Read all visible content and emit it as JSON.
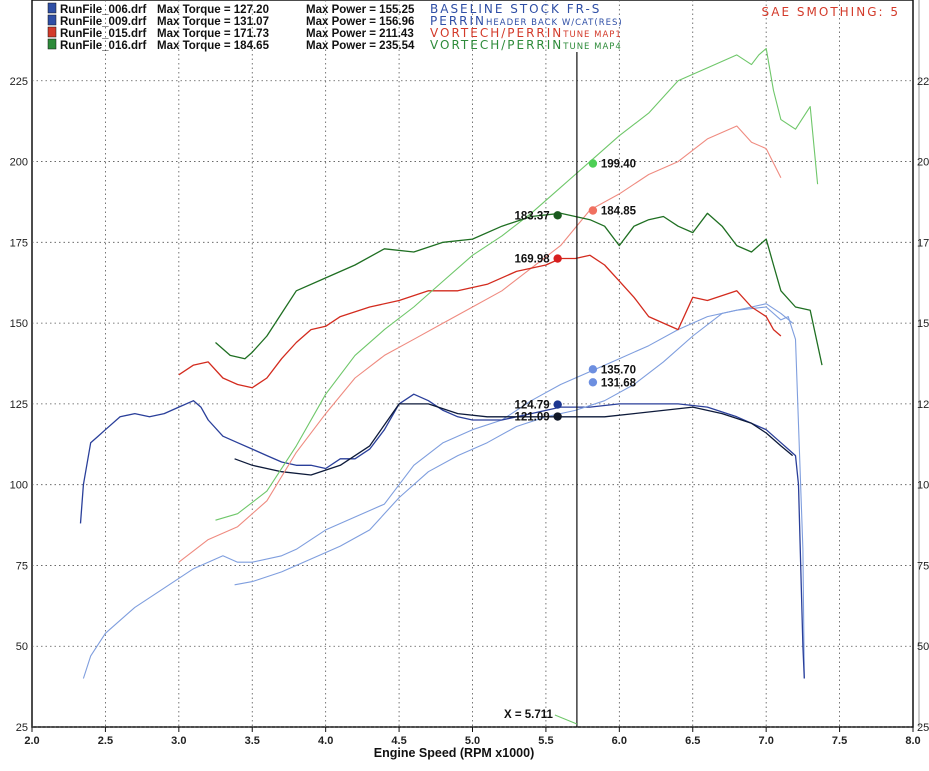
{
  "smoothing_label": "SAE SMOTHING: 5",
  "legend": [
    {
      "file": "RunFile_006.drf",
      "torque_label": "Max Torque = 127.20",
      "power_label": "Max Power = 155.25",
      "tune_main": "BASELINE STOCK FR-S",
      "tune_small": "",
      "color": "#2f4fa6"
    },
    {
      "file": "RunFile_009.drf",
      "torque_label": "Max Torque = 131.07",
      "power_label": "Max Power = 156.96",
      "tune_main": "PERRIN",
      "tune_small": "HEADER BACK W/CAT(RES)",
      "color": "#2f4fa6"
    },
    {
      "file": "RunFile_015.drf",
      "torque_label": "Max Torque = 171.73",
      "power_label": "Max Power = 211.43",
      "tune_main": "VORTECH/PERRIN",
      "tune_small": "TUNE MAP1",
      "color": "#d33a2a"
    },
    {
      "file": "RunFile_016.drf",
      "torque_label": "Max Torque = 184.65",
      "power_label": "Max Power = 235.54",
      "tune_main": "VORTECH/PERRIN",
      "tune_small": "TUNE MAP4",
      "color": "#2e8b3a"
    }
  ],
  "cursor_label": "X = 5.711",
  "chart_data": {
    "type": "line",
    "xlabel": "Engine Speed (RPM x1000)",
    "ylabel": "",
    "xlim": [
      2.0,
      8.0
    ],
    "ylim": [
      25,
      250
    ],
    "x_ticks": [
      "2.0",
      "2.5",
      "3.0",
      "3.5",
      "4.0",
      "4.5",
      "5.0",
      "5.5",
      "6.0",
      "6.5",
      "7.0",
      "7.5",
      "8.0"
    ],
    "y_ticks": [
      "25",
      "50",
      "75",
      "100",
      "125",
      "150",
      "175",
      "200",
      "225"
    ],
    "grid": true,
    "cursor_x": 5.711,
    "series": [
      {
        "name": "RunFile_006.drf",
        "kind": "power",
        "color": "#7f9ede",
        "width": 1.1,
        "x": [
          2.35,
          2.4,
          2.5,
          2.7,
          2.9,
          3.1,
          3.3,
          3.4,
          3.5,
          3.7,
          3.8,
          4.0,
          4.2,
          4.4,
          4.5,
          4.6,
          4.8,
          5.0,
          5.2,
          5.4,
          5.6,
          5.8,
          6.0,
          6.2,
          6.4,
          6.6,
          6.8,
          7.0,
          7.1,
          7.15,
          7.2,
          7.25,
          7.26
        ],
        "y": [
          40,
          47,
          54,
          62,
          68,
          74,
          78,
          76,
          76,
          78,
          80,
          86,
          90,
          94,
          100,
          106,
          113,
          117,
          120,
          126,
          131,
          135,
          139,
          143,
          148,
          152,
          154,
          155,
          151,
          152,
          145,
          80,
          40
        ]
      },
      {
        "name": "RunFile_006.drf",
        "kind": "torque",
        "color": "#2a3f9a",
        "width": 1.3,
        "x": [
          2.33,
          2.35,
          2.4,
          2.45,
          2.5,
          2.6,
          2.7,
          2.8,
          2.9,
          3.0,
          3.1,
          3.15,
          3.2,
          3.3,
          3.4,
          3.5,
          3.6,
          3.7,
          3.8,
          3.9,
          4.0,
          4.1,
          4.2,
          4.3,
          4.4,
          4.5,
          4.6,
          4.7,
          4.8,
          4.9,
          5.0,
          5.2,
          5.4,
          5.6,
          5.8,
          6.0,
          6.2,
          6.4,
          6.6,
          6.8,
          7.0,
          7.1,
          7.15,
          7.2,
          7.22,
          7.25,
          7.26
        ],
        "y": [
          88,
          100,
          113,
          115,
          117,
          121,
          122,
          121,
          122,
          124,
          126,
          124,
          120,
          115,
          113,
          111,
          109,
          107,
          106,
          106,
          105,
          108,
          108,
          111,
          117,
          125,
          128,
          126,
          123,
          121,
          120,
          120,
          122,
          124,
          124,
          125,
          125,
          125,
          124,
          121,
          117,
          113,
          111,
          109,
          100,
          50,
          40
        ]
      },
      {
        "name": "RunFile_009.drf",
        "kind": "power",
        "color": "#7f9ede",
        "width": 1.1,
        "x": [
          3.38,
          3.5,
          3.7,
          3.9,
          4.1,
          4.3,
          4.5,
          4.7,
          4.9,
          5.1,
          5.3,
          5.5,
          5.7,
          5.9,
          6.1,
          6.3,
          6.5,
          6.7,
          6.9,
          7.0,
          7.1,
          7.18
        ],
        "y": [
          69,
          70,
          73,
          77,
          81,
          86,
          96,
          104,
          109,
          113,
          118,
          121,
          123,
          126,
          131,
          138,
          146,
          153,
          155,
          156,
          153,
          150
        ]
      },
      {
        "name": "RunFile_009.drf",
        "kind": "torque",
        "color": "#0d1a3a",
        "width": 1.3,
        "x": [
          3.38,
          3.5,
          3.7,
          3.9,
          4.1,
          4.3,
          4.5,
          4.7,
          4.9,
          5.1,
          5.3,
          5.5,
          5.7,
          5.9,
          6.1,
          6.3,
          6.5,
          6.7,
          6.9,
          7.0,
          7.1,
          7.18
        ],
        "y": [
          108,
          106,
          104,
          103,
          106,
          112,
          125,
          125,
          122,
          121,
          121,
          121,
          121,
          121,
          122,
          123,
          124,
          122,
          119,
          116,
          112,
          109
        ]
      },
      {
        "name": "RunFile_015.drf",
        "kind": "power",
        "color": "#ef8b80",
        "width": 1.1,
        "x": [
          3.0,
          3.2,
          3.4,
          3.6,
          3.8,
          4.0,
          4.2,
          4.4,
          4.6,
          4.8,
          5.0,
          5.2,
          5.4,
          5.6,
          5.8,
          6.0,
          6.2,
          6.4,
          6.6,
          6.8,
          6.9,
          7.0,
          7.1
        ],
        "y": [
          76,
          83,
          87,
          95,
          110,
          122,
          133,
          140,
          145,
          150,
          155,
          160,
          167,
          174,
          185,
          190,
          196,
          200,
          207,
          211,
          206,
          204,
          195
        ]
      },
      {
        "name": "RunFile_015.drf",
        "kind": "torque",
        "color": "#d32b1e",
        "width": 1.3,
        "x": [
          3.0,
          3.1,
          3.2,
          3.3,
          3.4,
          3.5,
          3.6,
          3.7,
          3.8,
          3.9,
          4.0,
          4.1,
          4.3,
          4.5,
          4.7,
          4.9,
          5.1,
          5.3,
          5.5,
          5.6,
          5.7,
          5.8,
          5.9,
          6.0,
          6.1,
          6.2,
          6.3,
          6.4,
          6.5,
          6.6,
          6.8,
          6.9,
          7.0,
          7.05,
          7.1
        ],
        "y": [
          134,
          137,
          138,
          133,
          131,
          130,
          133,
          139,
          144,
          148,
          149,
          152,
          155,
          157,
          160,
          160,
          162,
          166,
          168,
          170,
          170,
          171,
          168,
          163,
          158,
          152,
          150,
          148,
          158,
          157,
          160,
          155,
          152,
          148,
          146
        ]
      },
      {
        "name": "RunFile_016.drf",
        "kind": "power",
        "color": "#6fc76a",
        "width": 1.1,
        "x": [
          3.25,
          3.4,
          3.6,
          3.8,
          4.0,
          4.2,
          4.4,
          4.6,
          4.8,
          5.0,
          5.2,
          5.4,
          5.6,
          5.7,
          5.8,
          6.0,
          6.2,
          6.4,
          6.6,
          6.8,
          6.9,
          6.95,
          7.0,
          7.05,
          7.1,
          7.2,
          7.3,
          7.35
        ],
        "y": [
          89,
          91,
          98,
          112,
          128,
          140,
          148,
          155,
          163,
          171,
          177,
          184,
          192,
          196,
          200,
          208,
          215,
          225,
          229,
          233,
          230,
          233,
          235,
          222,
          213,
          210,
          217,
          193
        ]
      },
      {
        "name": "RunFile_016.drf",
        "kind": "torque",
        "color": "#1f6f22",
        "width": 1.3,
        "x": [
          3.25,
          3.35,
          3.45,
          3.5,
          3.6,
          3.7,
          3.8,
          4.0,
          4.2,
          4.4,
          4.6,
          4.8,
          5.0,
          5.2,
          5.4,
          5.6,
          5.7,
          5.8,
          5.9,
          6.0,
          6.1,
          6.2,
          6.3,
          6.4,
          6.5,
          6.6,
          6.7,
          6.8,
          6.9,
          7.0,
          7.05,
          7.1,
          7.2,
          7.3,
          7.38
        ],
        "y": [
          144,
          140,
          139,
          141,
          146,
          153,
          160,
          164,
          168,
          173,
          172,
          175,
          176,
          180,
          183,
          184,
          183,
          182,
          180,
          174,
          180,
          182,
          183,
          180,
          178,
          184,
          180,
          174,
          172,
          176,
          168,
          160,
          155,
          154,
          137
        ]
      }
    ],
    "markers": [
      {
        "x": 5.82,
        "y": 199.4,
        "label": "199.40",
        "color": "#4dcf55",
        "side": "right"
      },
      {
        "x": 5.82,
        "y": 184.85,
        "label": "184.85",
        "color": "#f07060",
        "side": "right"
      },
      {
        "x": 5.58,
        "y": 183.37,
        "label": "183.37",
        "color": "#1a5a1e",
        "side": "left"
      },
      {
        "x": 5.58,
        "y": 169.98,
        "label": "169.98",
        "color": "#d81e1e",
        "side": "left"
      },
      {
        "x": 5.82,
        "y": 135.7,
        "label": "135.70",
        "color": "#6d8fe0",
        "side": "right"
      },
      {
        "x": 5.82,
        "y": 131.68,
        "label": "131.68",
        "color": "#6d8fe0",
        "side": "right"
      },
      {
        "x": 5.58,
        "y": 124.79,
        "label": "124.79",
        "color": "#1c3690",
        "side": "left"
      },
      {
        "x": 5.58,
        "y": 121.09,
        "label": "121.09",
        "color": "#111827",
        "side": "left"
      }
    ]
  }
}
